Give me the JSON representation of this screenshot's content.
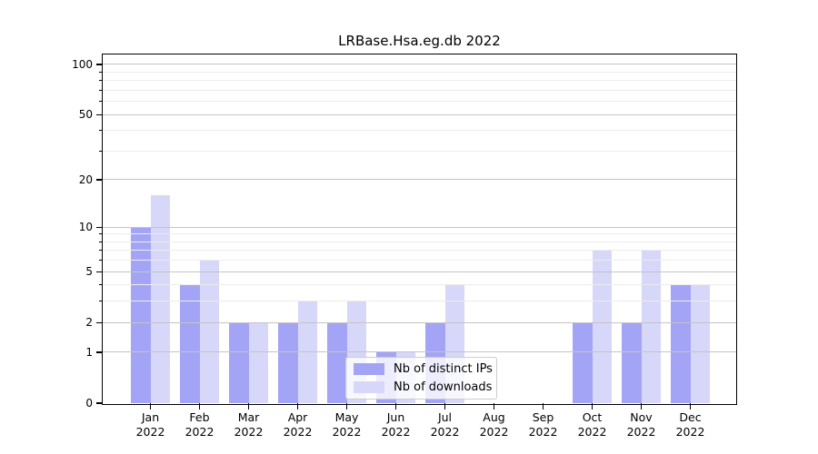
{
  "title": "LRBase.Hsa.eg.db 2022",
  "chart_data": {
    "type": "bar",
    "title": "LRBase.Hsa.eg.db 2022",
    "x": {
      "months": [
        "Jan",
        "Feb",
        "Mar",
        "Apr",
        "May",
        "Jun",
        "Jul",
        "Aug",
        "Sep",
        "Oct",
        "Nov",
        "Dec"
      ],
      "year": "2022"
    },
    "categories": [
      "Jan 2022",
      "Feb 2022",
      "Mar 2022",
      "Apr 2022",
      "May 2022",
      "Jun 2022",
      "Jul 2022",
      "Aug 2022",
      "Sep 2022",
      "Oct 2022",
      "Nov 2022",
      "Dec 2022"
    ],
    "series": [
      {
        "name": "Nb of distinct IPs",
        "color": "#a4a4f6",
        "values": [
          10,
          4,
          2,
          2,
          2,
          1,
          2,
          0,
          0,
          2,
          2,
          4
        ]
      },
      {
        "name": "Nb of downloads",
        "color": "#d7d7f9",
        "values": [
          16,
          6,
          2,
          3,
          3,
          1,
          4,
          0,
          0,
          7,
          7,
          4
        ]
      }
    ],
    "y_axis": {
      "scale": "log1p",
      "major_ticks": [
        0,
        1,
        2,
        5,
        10,
        20,
        50,
        100
      ],
      "minor_ticks": [
        3,
        4,
        6,
        7,
        8,
        9,
        30,
        40,
        60,
        70,
        80,
        90
      ],
      "ylim": [
        0,
        114
      ]
    },
    "grid": {
      "enabled": true,
      "major_color": "#c4c4c4",
      "minor_color": "#ececec"
    },
    "legend": {
      "position": "lower-center",
      "entries": [
        "Nb of distinct IPs",
        "Nb of downloads"
      ]
    }
  }
}
